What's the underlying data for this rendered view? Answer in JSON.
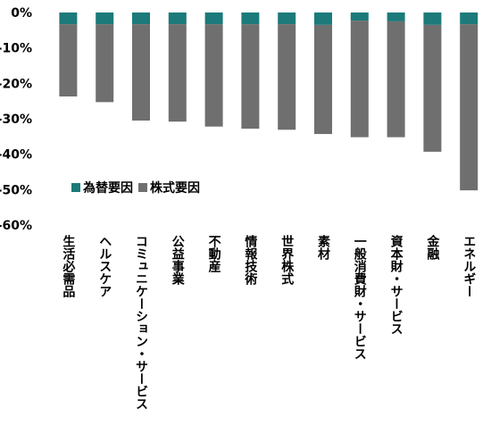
{
  "chart_data": {
    "type": "bar",
    "stacked": true,
    "categories": [
      "生活必需品",
      "ヘルスケア",
      "コミュニケーション・サービス",
      "公益事業",
      "不動産",
      "情報技術",
      "世界株式",
      "素材",
      "一般消費財・サービス",
      "資本財・サービス",
      "金融",
      "エネルギー"
    ],
    "series": [
      {
        "name": "為替要因",
        "color": "#1c7a7a",
        "values": [
          -3.3,
          -3.3,
          -3.3,
          -3.3,
          -3.3,
          -3.3,
          -3.3,
          -3.5,
          -2.3,
          -2.5,
          -3.5,
          -3.3
        ]
      },
      {
        "name": "株式要因",
        "color": "#6f6f6f",
        "values": [
          -20.4,
          -22.0,
          -27.2,
          -27.5,
          -28.9,
          -29.5,
          -29.8,
          -30.8,
          -32.9,
          -32.7,
          -35.8,
          -46.9
        ]
      }
    ],
    "yticks": [
      "0%",
      "-10%",
      "-20%",
      "-30%",
      "-40%",
      "-50%",
      "-60%"
    ],
    "ylim": [
      -60,
      0
    ],
    "grid": false,
    "legend_position": "inside-lower-left"
  }
}
